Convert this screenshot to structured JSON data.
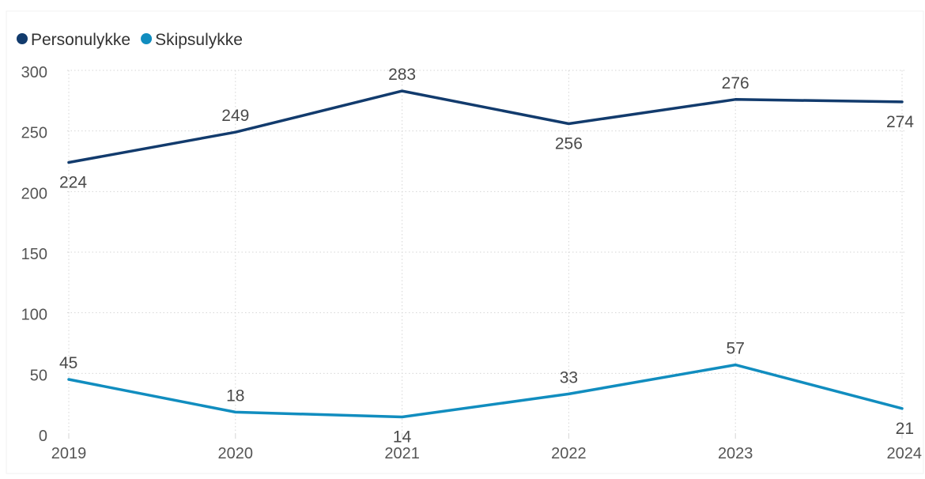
{
  "chart_data": {
    "type": "line",
    "categories": [
      "2019",
      "2020",
      "2021",
      "2022",
      "2023",
      "2024"
    ],
    "series": [
      {
        "name": "Personulykke",
        "values": [
          224,
          249,
          283,
          256,
          276,
          274
        ],
        "color": "#123b6d"
      },
      {
        "name": "Skipsulykke",
        "values": [
          45,
          18,
          14,
          33,
          57,
          21
        ],
        "color": "#118dbf"
      }
    ],
    "ylim": [
      0,
      300
    ],
    "yticks": [
      0,
      50,
      100,
      150,
      200,
      250,
      300
    ],
    "grid": true,
    "legend_position": "top-left",
    "data_labels": true,
    "colors": {
      "axis_text": "#555555",
      "grid": "#d6d6d6",
      "label_text": "#4a4a4a"
    }
  }
}
